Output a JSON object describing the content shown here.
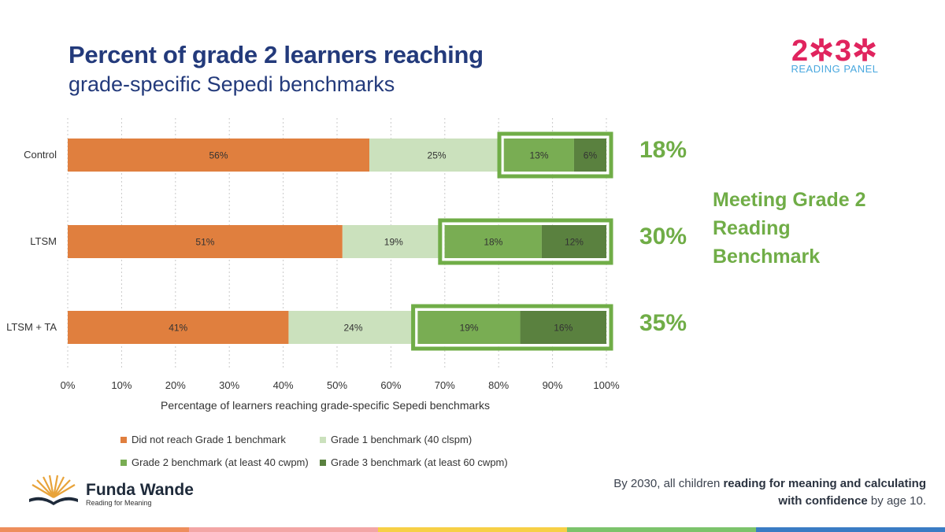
{
  "header": {
    "title_line1": "Percent of grade 2 learners reaching",
    "title_line2": "grade-specific Sepedi benchmarks"
  },
  "logo_2030": {
    "digits": "2✲3✲",
    "subtitle": "READING PANEL",
    "colors": {
      "digits": "#e0245e",
      "subtitle": "#4aa8df"
    }
  },
  "chart_data": {
    "type": "bar",
    "orientation": "horizontal",
    "stacked": true,
    "categories": [
      "Control",
      "LTSM",
      "LTSM + TA"
    ],
    "series": [
      {
        "name": "Did not reach Grade 1 benchmark",
        "color": "#e07f3e",
        "values": [
          56,
          51,
          41
        ],
        "labels": [
          "56%",
          "51%",
          "41%"
        ]
      },
      {
        "name": "Grade 1 benchmark (40 clspm)",
        "color": "#cbe1bd",
        "values": [
          25,
          19,
          24
        ],
        "labels": [
          "25%",
          "19%",
          "24%"
        ]
      },
      {
        "name": "Grade 2 benchmark (at least 40 cwpm)",
        "color": "#79ad53",
        "values": [
          13,
          18,
          19
        ],
        "labels": [
          "13%",
          "18%",
          "19%"
        ]
      },
      {
        "name": "Grade 3 benchmark (at least 60 cwpm)",
        "color": "#5a813f",
        "values": [
          6,
          12,
          16
        ],
        "labels": [
          "6%",
          "12%",
          "16%"
        ]
      }
    ],
    "xlim": [
      0,
      100
    ],
    "xticks": [
      "0%",
      "10%",
      "20%",
      "30%",
      "40%",
      "50%",
      "60%",
      "70%",
      "80%",
      "90%",
      "100%"
    ],
    "xlabel": "Percentage of learners reaching grade-specific Sepedi benchmarks",
    "grid": "vertical dotted",
    "highlight_color": "#70ad47"
  },
  "callouts": {
    "values": [
      "18%",
      "30%",
      "35%"
    ],
    "meeting_label": "Meeting Grade 2 Reading Benchmark"
  },
  "legend": {
    "items": [
      "Did not reach Grade 1 benchmark",
      "Grade 1 benchmark (40 clspm)",
      "Grade 2 benchmark (at least 40 cwpm)",
      "Grade 3 benchmark (at least 60 cwpm)"
    ]
  },
  "footer": {
    "brand_name": "Funda Wande",
    "brand_tagline": "Reading for Meaning",
    "slogan_part1": "By 2030, all children ",
    "slogan_bold1": "reading for meaning and calculating with confidence",
    "slogan_part2": " by age 10."
  },
  "strip_colors": [
    "#ee8e5c",
    "#f3a6a6",
    "#f7d046",
    "#7cc36b",
    "#3a7cc4"
  ]
}
